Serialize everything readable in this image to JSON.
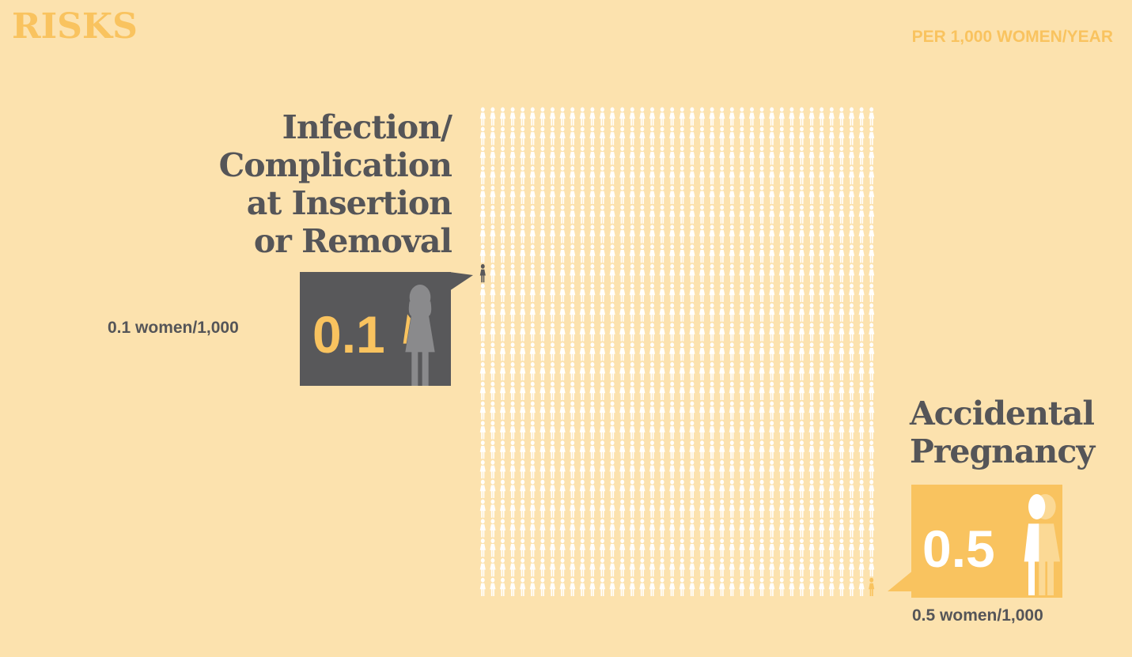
{
  "header": {
    "title": "RISKS",
    "unit_label": "PER 1,000 WOMEN/YEAR"
  },
  "infection": {
    "title_lines": [
      "Infection/",
      "Complication",
      "at Insertion",
      "or Removal"
    ],
    "value": "0.1",
    "sub_label": "0.1 women/1,000"
  },
  "pregnancy": {
    "title_lines": [
      "Accidental",
      "Pregnancy"
    ],
    "value": "0.5",
    "sub_label": "0.5 women/1,000"
  },
  "colors": {
    "background": "#fce2ae",
    "accent": "#f9c35f",
    "dark": "#58585a",
    "figure": "#ffffff"
  },
  "chart_data": {
    "type": "pictogram",
    "total_figures": 1000,
    "columns": 40,
    "rows": 25,
    "per_label": "PER 1,000 WOMEN/YEAR",
    "highlights": [
      {
        "name": "Infection/Complication at Insertion or Removal",
        "value": 0.1,
        "unit": "women/1,000",
        "figure_row": 8,
        "figure_col": 0,
        "color": "#58585a"
      },
      {
        "name": "Accidental Pregnancy",
        "value": 0.5,
        "unit": "women/1,000",
        "figure_row": 24,
        "figure_col": 39,
        "color": "#f9c35f"
      }
    ]
  }
}
